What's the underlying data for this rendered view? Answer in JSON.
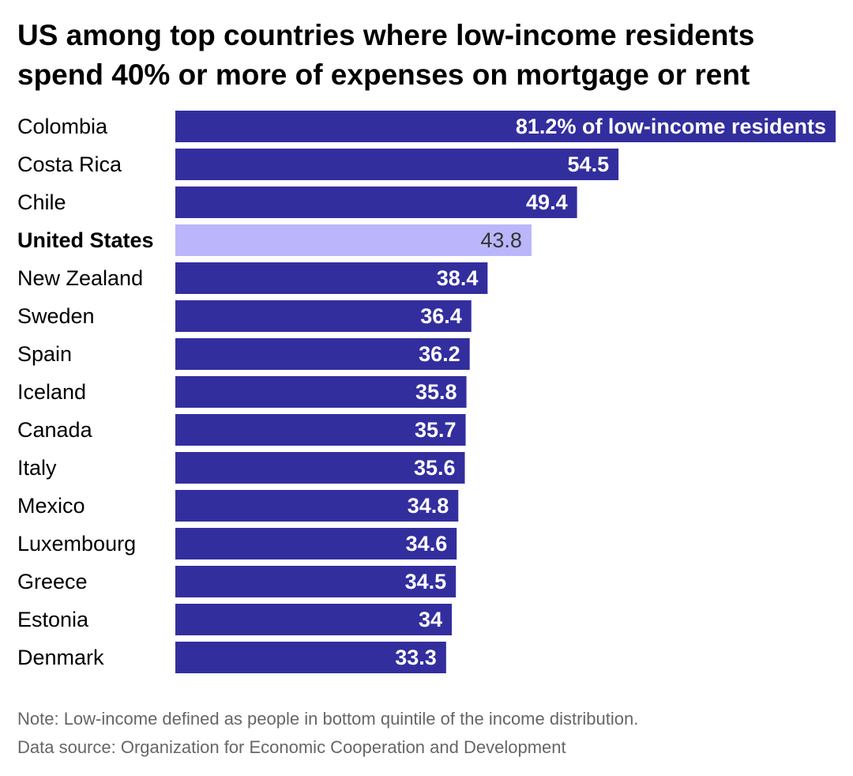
{
  "title": {
    "line1": "US among top countries where low-income residents",
    "line2": "spend 40% or more of expenses on mortgage or rent"
  },
  "colors": {
    "bar": "#332e9e",
    "highlight": "#bbb6fb",
    "label_light": "#ffffff",
    "label_dark": "#333333"
  },
  "chart_data": {
    "type": "bar",
    "orientation": "horizontal",
    "title": "US among top countries where low-income residents spend 40% or more of expenses on mortgage or rent",
    "xlabel": "",
    "ylabel": "",
    "xlim": [
      0,
      81.2
    ],
    "grid": false,
    "highlight": "United States",
    "categories": [
      "Colombia",
      "Costa Rica",
      "Chile",
      "United States",
      "New Zealand",
      "Sweden",
      "Spain",
      "Iceland",
      "Canada",
      "Italy",
      "Mexico",
      "Luxembourg",
      "Greece",
      "Estonia",
      "Denmark"
    ],
    "values": [
      81.2,
      54.5,
      49.4,
      43.8,
      38.4,
      36.4,
      36.2,
      35.8,
      35.7,
      35.6,
      34.8,
      34.6,
      34.5,
      34,
      33.3
    ],
    "labels": [
      "81.2% of low-income residents",
      "54.5",
      "49.4",
      "43.8",
      "38.4",
      "36.4",
      "36.2",
      "35.8",
      "35.7",
      "35.6",
      "34.8",
      "34.6",
      "34.5",
      "34",
      "33.3"
    ]
  },
  "notes": {
    "note": "Note: Low-income defined as people in bottom quintile of the income distribution.",
    "source": "Data source: Organization for Economic Cooperation and Development"
  }
}
